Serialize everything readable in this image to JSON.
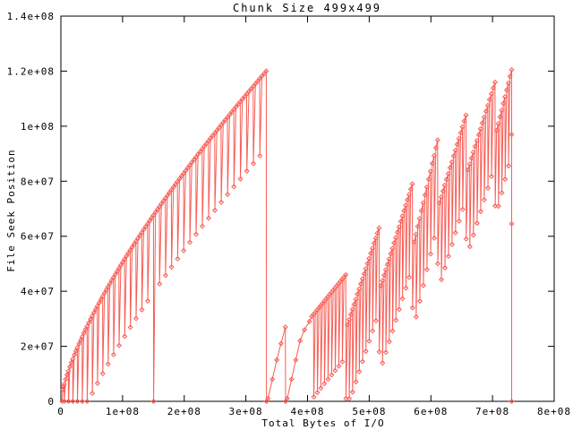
{
  "chart_data": {
    "type": "linespoints",
    "title": "Chunk Size 499x499",
    "xlabel": "Total Bytes of I/O",
    "ylabel": "File Seek Position",
    "xlim": [
      0,
      800000000
    ],
    "ylim": [
      0,
      140000000
    ],
    "grid": false,
    "legend": "none",
    "xticks": {
      "values": [
        0,
        100000000,
        200000000,
        300000000,
        400000000,
        500000000,
        600000000,
        700000000,
        800000000
      ],
      "labels": [
        "0",
        "1e+08",
        "2e+08",
        "3e+08",
        "4e+08",
        "5e+08",
        "6e+08",
        "7e+08",
        "8e+08"
      ]
    },
    "yticks": {
      "values": [
        0,
        20000000,
        40000000,
        60000000,
        80000000,
        100000000,
        120000000,
        140000000
      ],
      "labels": [
        "0",
        "2e+07",
        "4e+07",
        "6e+07",
        "8e+07",
        "1e+08",
        "1.2e+08",
        "1.4e+08"
      ]
    },
    "series": [
      {
        "color": "#f85d56",
        "marker": "open-diamond",
        "point_unit": 1000000,
        "pattern": {
          "section_a": {
            "x_start": 2,
            "x_end": 333,
            "envelope_peak": 120,
            "envelope_power": 0.72,
            "teeth": 36,
            "spacing_power": 1.15,
            "tooth_depth": 28,
            "full_drop_x": 153,
            "end_drop_y": 0
          },
          "ramps": [
            [
              [
                336,
                1
              ],
              [
                343,
                8
              ],
              [
                350,
                15
              ],
              [
                357,
                21
              ],
              [
                364,
                27
              ],
              [
                364.5,
                0
              ]
            ],
            [
              [
                367,
                1
              ],
              [
                374,
                8
              ],
              [
                381,
                15
              ],
              [
                388,
                22
              ],
              [
                395,
                26
              ],
              [
                403,
                29
              ]
            ]
          ],
          "section_b": {
            "tooth_depth": 30,
            "band_end_tooth_depth": 45,
            "tooth_spacing": 5.6,
            "bands": [
              [
                404,
                462,
                30,
                46
              ],
              [
                462,
                516,
                26,
                63
              ],
              [
                516,
                570,
                40,
                79
              ],
              [
                570,
                611,
                55,
                95
              ],
              [
                611,
                657,
                70,
                104
              ],
              [
                657,
                704,
                82,
                116
              ],
              [
                704,
                731,
                96,
                120.5
              ]
            ]
          },
          "final_drop": {
            "x": 731,
            "top": 120.5,
            "marker_ys": [
              97,
              64.5,
              0
            ]
          }
        }
      }
    ]
  }
}
